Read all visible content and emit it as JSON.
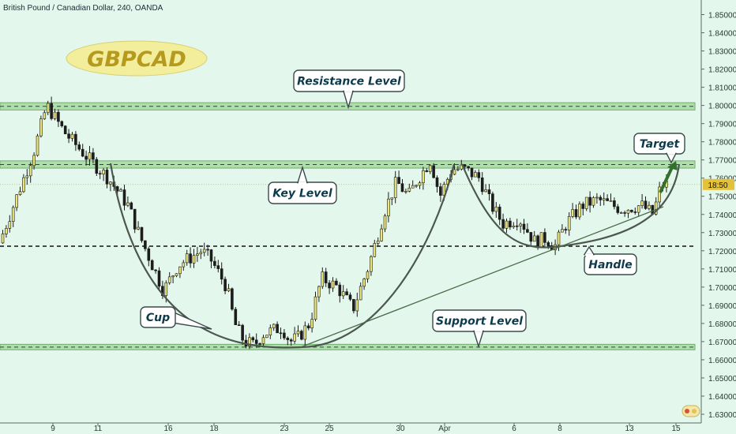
{
  "header": {
    "title": "British Pound / Canadian Dollar, 240, OANDA"
  },
  "badge": {
    "text": "GBPCAD"
  },
  "price_label": {
    "text": "18:50"
  },
  "callouts": {
    "resistance": "Resistance Level",
    "key": "Key Level",
    "target": "Target",
    "handle": "Handle",
    "cup": "Cup",
    "support": "Support Level"
  },
  "colors": {
    "background": "#e3f7ec",
    "candle_up": "#ece57a",
    "candle_down": "#1c1c1c",
    "zone_fill": "#9ed49a",
    "zone_border": "#6fae6a",
    "badge_fill": "#f3ee9c",
    "badge_text": "#b59a1e",
    "callout_text": "#0d3a4a",
    "current_price": "#e3c23a",
    "curve": "#4c5750"
  },
  "chart_data": {
    "type": "candlestick",
    "title": "British Pound / Canadian Dollar, 240, OANDA",
    "ylim": [
      1.625,
      1.857
    ],
    "y_ticks": [
      "1.85000",
      "1.84000",
      "1.83000",
      "1.82000",
      "1.81000",
      "1.80000",
      "1.79000",
      "1.78000",
      "1.77000",
      "1.76000",
      "1.75000",
      "1.74000",
      "1.73000",
      "1.72000",
      "1.71000",
      "1.70000",
      "1.69000",
      "1.68000",
      "1.67000",
      "1.66000",
      "1.65000",
      "1.64000",
      "1.63000"
    ],
    "x_ticks": [
      "9",
      "11",
      "16",
      "18",
      "23",
      "25",
      "30",
      "Apr",
      "6",
      "8",
      "13",
      "15"
    ],
    "current_price": 1.7565,
    "zones": [
      {
        "name": "Resistance Level",
        "low": 1.7975,
        "high": 1.8015
      },
      {
        "name": "Key Level",
        "low": 1.7655,
        "high": 1.7695
      },
      {
        "name": "Support Level",
        "low": 1.6655,
        "high": 1.6685
      }
    ],
    "dashed_level": 1.7225,
    "anchors": [
      [
        0,
        1.722
      ],
      [
        20,
        1.745
      ],
      [
        46,
        1.775
      ],
      [
        62,
        1.8
      ],
      [
        85,
        1.785
      ],
      [
        110,
        1.773
      ],
      [
        140,
        1.76
      ],
      [
        165,
        1.745
      ],
      [
        180,
        1.728
      ],
      [
        210,
        1.698
      ],
      [
        228,
        1.712
      ],
      [
        258,
        1.72
      ],
      [
        270,
        1.715
      ],
      [
        290,
        1.7
      ],
      [
        300,
        1.68
      ],
      [
        312,
        1.67
      ],
      [
        325,
        1.668
      ],
      [
        335,
        1.674
      ],
      [
        360,
        1.678
      ],
      [
        370,
        1.67
      ],
      [
        380,
        1.672
      ],
      [
        395,
        1.68
      ],
      [
        410,
        1.705
      ],
      [
        430,
        1.7
      ],
      [
        450,
        1.688
      ],
      [
        470,
        1.712
      ],
      [
        490,
        1.742
      ],
      [
        505,
        1.758
      ],
      [
        520,
        1.75
      ],
      [
        530,
        1.758
      ],
      [
        548,
        1.77
      ],
      [
        560,
        1.75
      ],
      [
        575,
        1.765
      ],
      [
        590,
        1.765
      ],
      [
        610,
        1.76
      ],
      [
        625,
        1.745
      ],
      [
        640,
        1.735
      ],
      [
        660,
        1.738
      ],
      [
        680,
        1.725
      ],
      [
        695,
        1.727
      ],
      [
        705,
        1.722
      ],
      [
        720,
        1.735
      ],
      [
        740,
        1.745
      ],
      [
        760,
        1.748
      ],
      [
        790,
        1.743
      ],
      [
        815,
        1.745
      ],
      [
        830,
        1.74
      ],
      [
        840,
        1.756
      ],
      [
        848,
        1.7565
      ]
    ]
  }
}
